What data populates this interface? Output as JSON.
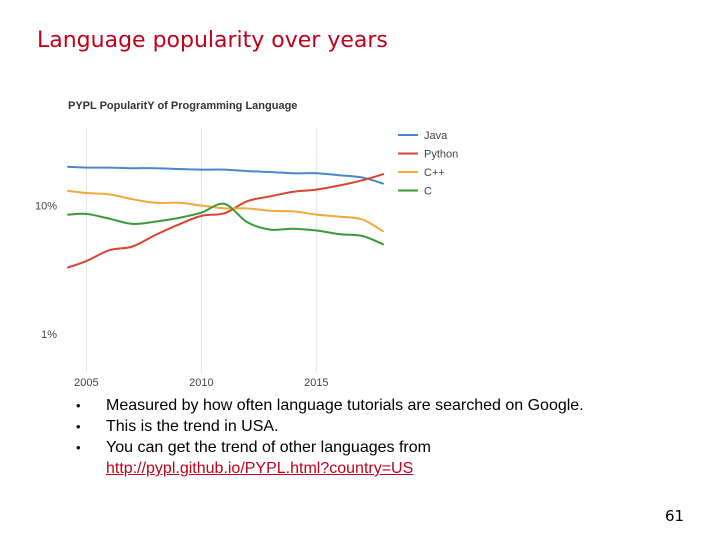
{
  "slide": {
    "title": "Language popularity over years",
    "bullets": [
      "Measured by how often language tutorials are searched on Google.",
      "This is the trend in USA.",
      "You can get the trend of other languages from"
    ],
    "link_text": "http://pypl.github.io/PYPL.html?country=US",
    "bullet_glyph": "•",
    "page_number": "61"
  },
  "chart_data": {
    "type": "line",
    "title": "PYPL PopularitY of Programming Language",
    "xlabel": "",
    "ylabel": "",
    "x_ticks": [
      "2005",
      "2010",
      "2015"
    ],
    "x_tick_values": [
      2005,
      2010,
      2015
    ],
    "y_ticks": [
      "10%",
      "1%"
    ],
    "y_tick_values": [
      10,
      1
    ],
    "y_scale": "log",
    "ylim": [
      0.5,
      40
    ],
    "xlim": [
      2004.2,
      2017.9
    ],
    "grid": "vertical",
    "legend_position": "right",
    "x": [
      2004.2,
      2005,
      2006,
      2007,
      2008,
      2009,
      2010,
      2011,
      2012,
      2013,
      2014,
      2015,
      2016,
      2017,
      2017.9
    ],
    "series": [
      {
        "name": "Java",
        "color": "#4a86c8",
        "values": [
          20.0,
          19.7,
          19.7,
          19.5,
          19.5,
          19.2,
          19.0,
          19.0,
          18.5,
          18.2,
          17.8,
          17.8,
          17.2,
          16.5,
          14.8
        ]
      },
      {
        "name": "Python",
        "color": "#d9442f",
        "values": [
          3.3,
          3.7,
          4.5,
          4.8,
          5.9,
          7.1,
          8.3,
          8.7,
          10.8,
          11.8,
          12.8,
          13.3,
          14.3,
          15.7,
          17.5
        ]
      },
      {
        "name": "C++",
        "color": "#f2a93b",
        "values": [
          13.0,
          12.5,
          12.2,
          11.2,
          10.5,
          10.5,
          10.0,
          9.5,
          9.5,
          9.1,
          9.0,
          8.5,
          8.2,
          7.8,
          6.3
        ]
      },
      {
        "name": "C",
        "color": "#3a9a3a",
        "values": [
          8.5,
          8.6,
          7.9,
          7.2,
          7.5,
          8.0,
          8.8,
          10.3,
          7.4,
          6.5,
          6.6,
          6.4,
          6.0,
          5.8,
          5.0
        ]
      }
    ]
  }
}
